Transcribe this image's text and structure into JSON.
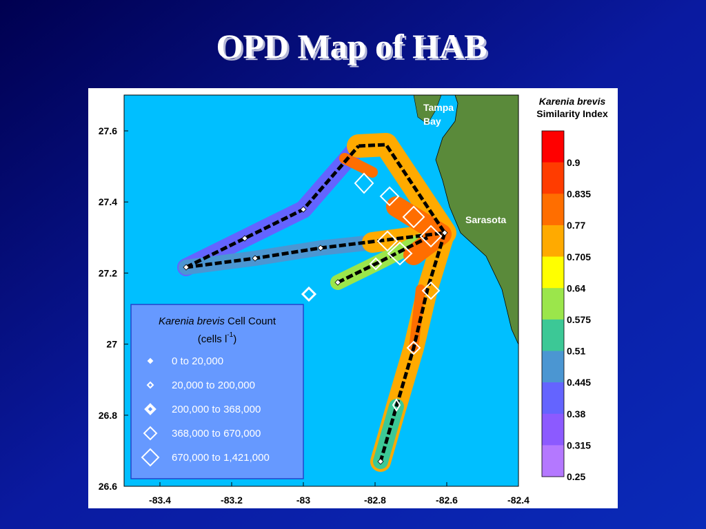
{
  "title": "OPD Map of HAB",
  "map": {
    "xticks": [
      -83.4,
      -83.2,
      -83,
      -82.8,
      -82.6,
      -82.4
    ],
    "yticks": [
      27.6,
      27.4,
      27.2,
      27,
      26.8,
      26.6
    ],
    "places": [
      "Tampa",
      "Bay",
      "Sarasota"
    ]
  },
  "colorbar": {
    "title_italic": "Karenia brevis",
    "title": "Similarity Index",
    "labels": [
      0.9,
      0.835,
      0.77,
      0.705,
      0.64,
      0.575,
      0.51,
      0.445,
      0.38,
      0.315,
      0.25
    ],
    "colors": [
      "#ff0000",
      "#ff3c00",
      "#ff6e00",
      "#ffaa00",
      "#ffff00",
      "#9be64b",
      "#3cc896",
      "#4b96d2",
      "#6464ff",
      "#8c5aff",
      "#b478ff"
    ]
  },
  "legend": {
    "title_italic": "Karenia brevis",
    "title": "Cell Count",
    "unit": "(cells l",
    "unit_sup": "-1",
    "unit_end": ")",
    "entries": [
      "0  to  20,000",
      "20,000  to  200,000",
      "200,000  to  368,000",
      "368,000  to  670,000",
      "670,000  to  1,421,000"
    ]
  }
}
